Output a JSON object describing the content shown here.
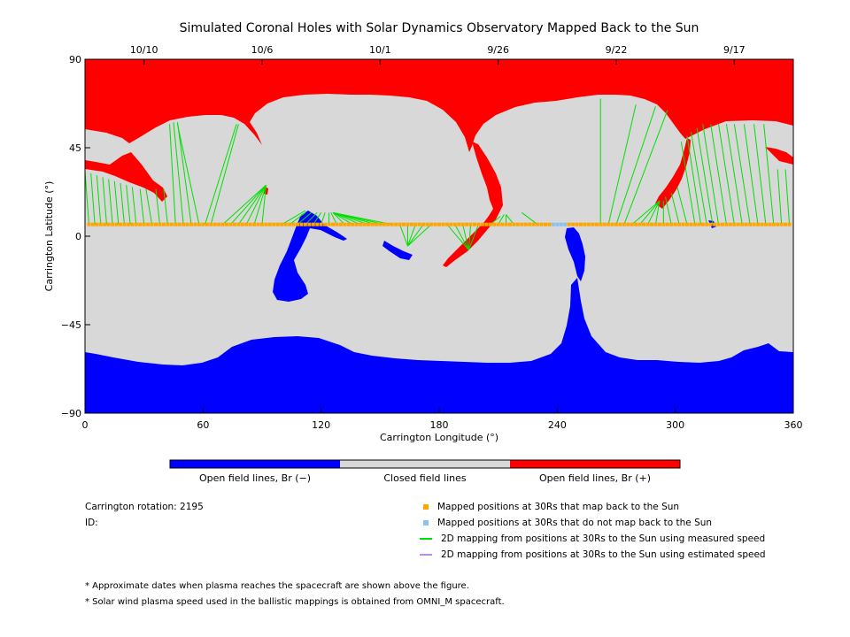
{
  "chart_data": {
    "type": "map",
    "title": "Simulated Coronal Holes with Solar Dynamics Observatory Mapped Back to the Sun",
    "xlabel": "Carrington Longitude (°)",
    "ylabel": "Carrington Latitude (°)",
    "xlim": [
      0,
      360
    ],
    "ylim": [
      -90,
      90
    ],
    "x_ticks": [
      0,
      60,
      120,
      180,
      240,
      300,
      360
    ],
    "y_ticks": [
      90,
      45,
      0,
      -45,
      -90
    ],
    "y_tick_labels": [
      "90",
      "45",
      "0",
      "−45",
      "−90"
    ],
    "top_axis_dates": [
      {
        "label": "10/10",
        "lon": 30
      },
      {
        "label": "10/6",
        "lon": 90
      },
      {
        "label": "10/1",
        "lon": 150
      },
      {
        "label": "9/26",
        "lon": 210
      },
      {
        "label": "9/22",
        "lon": 270
      },
      {
        "label": "9/17",
        "lon": 330
      }
    ],
    "colors": {
      "open_negative": "#0000ff",
      "closed": "#d8d8d8",
      "open_positive": "#ff0000",
      "mapped_points": "#ffa500",
      "unmapped_points": "#87c3f0",
      "measured_line": "#00e000",
      "estimated_line": "#c08ae8"
    },
    "colorbar_labels": [
      "Open field lines, Br (−)",
      "Closed field lines",
      "Open field lines, Br (+)"
    ],
    "mapped_latitude": 6,
    "unmapped_lons": [
      238,
      240,
      242,
      244
    ],
    "mappings": [
      [
        2,
        6,
        0,
        33
      ],
      [
        5,
        6,
        3,
        32
      ],
      [
        8,
        6,
        6,
        31
      ],
      [
        11,
        6,
        9,
        30
      ],
      [
        14,
        6,
        12,
        29
      ],
      [
        17,
        6,
        15,
        28
      ],
      [
        20,
        6,
        18,
        27
      ],
      [
        23,
        6,
        21,
        26
      ],
      [
        26,
        6,
        24,
        25
      ],
      [
        30,
        6,
        28,
        24
      ],
      [
        34,
        6,
        31,
        24
      ],
      [
        38,
        6,
        36,
        24
      ],
      [
        42,
        6,
        40,
        24
      ],
      [
        46,
        6,
        43,
        57
      ],
      [
        50,
        6,
        45,
        58
      ],
      [
        54,
        6,
        47,
        58
      ],
      [
        58,
        6,
        47,
        57
      ],
      [
        61,
        6,
        77,
        57
      ],
      [
        64,
        6,
        78,
        57
      ],
      [
        70,
        6,
        92,
        26
      ],
      [
        74,
        6,
        92,
        26
      ],
      [
        78,
        6,
        92,
        26
      ],
      [
        82,
        6,
        92,
        26
      ],
      [
        86,
        6,
        92,
        26
      ],
      [
        90,
        6,
        92,
        26
      ],
      [
        100,
        6,
        112,
        13
      ],
      [
        104,
        6,
        112,
        12
      ],
      [
        108,
        6,
        115,
        12
      ],
      [
        112,
        6,
        118,
        12
      ],
      [
        116,
        6,
        120,
        12
      ],
      [
        120,
        6,
        122,
        12
      ],
      [
        124,
        6,
        124,
        12
      ],
      [
        128,
        6,
        125,
        12
      ],
      [
        132,
        6,
        126,
        12
      ],
      [
        136,
        6,
        126,
        12
      ],
      [
        140,
        6,
        126,
        12
      ],
      [
        144,
        6,
        126,
        12
      ],
      [
        148,
        6,
        126,
        12
      ],
      [
        152,
        6,
        126,
        12
      ],
      [
        156,
        6,
        126,
        12
      ],
      [
        160,
        6,
        164,
        -5
      ],
      [
        164,
        6,
        164,
        -5
      ],
      [
        168,
        6,
        164,
        -5
      ],
      [
        172,
        6,
        164,
        -5
      ],
      [
        176,
        6,
        164,
        -5
      ],
      [
        184,
        6,
        195,
        -7
      ],
      [
        188,
        6,
        195,
        -7
      ],
      [
        192,
        6,
        195,
        -7
      ],
      [
        196,
        6,
        195,
        -7
      ],
      [
        200,
        6,
        195,
        -7
      ],
      [
        206,
        6,
        211,
        10
      ],
      [
        210,
        6,
        213,
        11
      ],
      [
        214,
        6,
        214,
        11
      ],
      [
        218,
        6,
        214,
        11
      ],
      [
        230,
        6,
        222,
        12
      ],
      [
        262,
        6,
        262,
        70
      ],
      [
        266,
        6,
        280,
        67
      ],
      [
        270,
        6,
        290,
        66
      ],
      [
        274,
        6,
        296,
        64
      ],
      [
        278,
        6,
        292,
        18
      ],
      [
        282,
        6,
        292,
        18
      ],
      [
        286,
        6,
        292,
        18
      ],
      [
        290,
        6,
        292,
        18
      ],
      [
        294,
        6,
        294,
        18
      ],
      [
        298,
        6,
        295,
        20
      ],
      [
        302,
        6,
        298,
        22
      ],
      [
        306,
        6,
        301,
        25
      ],
      [
        310,
        6,
        303,
        48
      ],
      [
        313,
        6,
        306,
        51
      ],
      [
        316,
        6,
        308,
        53
      ],
      [
        319,
        6,
        311,
        55
      ],
      [
        322,
        6,
        314,
        57
      ],
      [
        326,
        6,
        318,
        57
      ],
      [
        330,
        6,
        322,
        57
      ],
      [
        334,
        6,
        326,
        57
      ],
      [
        338,
        6,
        330,
        57
      ],
      [
        342,
        6,
        335,
        57
      ],
      [
        346,
        6,
        340,
        57
      ],
      [
        350,
        6,
        345,
        57
      ],
      [
        354,
        6,
        352,
        34
      ],
      [
        358,
        6,
        356,
        34
      ]
    ]
  },
  "info": {
    "rotation": "Carrington rotation: 2195",
    "id": "ID:"
  },
  "legend": [
    {
      "label": "Mapped positions at 30Rs that map back to the Sun",
      "kind": "square",
      "color": "#ffa500"
    },
    {
      "label": "Mapped positions at 30Rs that do not map back to the Sun",
      "kind": "square",
      "color": "#87c3f0"
    },
    {
      "label": "2D mapping from positions at 30Rs to the Sun using measured speed",
      "kind": "line",
      "color": "#00e000"
    },
    {
      "label": "2D mapping from positions at 30Rs to the Sun using estimated speed",
      "kind": "line",
      "color": "#c08ae8"
    }
  ],
  "notes": [
    "* Approximate dates when plasma reaches the spacecraft are shown above the figure.",
    "* Solar wind plasma speed used in the ballistic mappings is obtained from OMNI_M spacecraft."
  ]
}
